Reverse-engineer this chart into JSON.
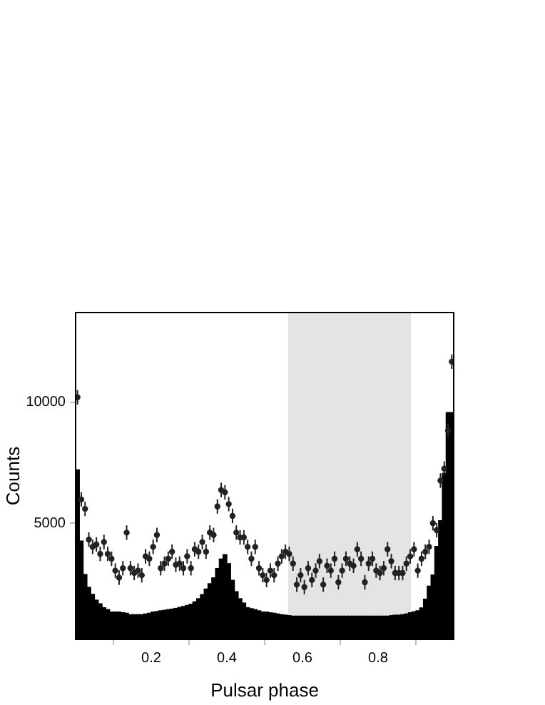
{
  "chart_data": {
    "type": "histogram",
    "xlabel": "Pulsar phase",
    "ylabel": "Counts",
    "xlim": [
      0,
      1
    ],
    "ylim": [
      200,
      13700
    ],
    "xticks": [
      0.2,
      0.4,
      0.6,
      0.8
    ],
    "yticks": [
      5000,
      10000
    ],
    "grid": false,
    "legend": false,
    "marker": "circle",
    "bands": [
      {
        "axis": "x",
        "from": 0.562,
        "to": 0.887,
        "color": "#e4e4e4"
      }
    ],
    "series": [
      {
        "type": "histogram",
        "color": "#000000",
        "bins": [
          0,
          0.01,
          0.02,
          0.03,
          0.04,
          0.05,
          0.06,
          0.07,
          0.08,
          0.09,
          0.1,
          0.11,
          0.12,
          0.13,
          0.14,
          0.15,
          0.16,
          0.17,
          0.18,
          0.19,
          0.2,
          0.21,
          0.22,
          0.23,
          0.24,
          0.25,
          0.26,
          0.27,
          0.28,
          0.29,
          0.3,
          0.31,
          0.32,
          0.33,
          0.34,
          0.35,
          0.36,
          0.37,
          0.38,
          0.39,
          0.4,
          0.41,
          0.42,
          0.43,
          0.44,
          0.45,
          0.46,
          0.47,
          0.48,
          0.49,
          0.5,
          0.51,
          0.52,
          0.53,
          0.54,
          0.55,
          0.56,
          0.57,
          0.58,
          0.59,
          0.6,
          0.61,
          0.62,
          0.63,
          0.64,
          0.65,
          0.66,
          0.67,
          0.68,
          0.69,
          0.7,
          0.71,
          0.72,
          0.73,
          0.74,
          0.75,
          0.76,
          0.77,
          0.78,
          0.79,
          0.8,
          0.81,
          0.82,
          0.83,
          0.84,
          0.85,
          0.86,
          0.87,
          0.88,
          0.89,
          0.9,
          0.91,
          0.92,
          0.93,
          0.94,
          0.95,
          0.96,
          0.97,
          0.98,
          0.99,
          1
        ],
        "values": [
          7200,
          4260,
          2880,
          2350,
          2060,
          1820,
          1670,
          1510,
          1430,
          1330,
          1330,
          1330,
          1300,
          1280,
          1220,
          1220,
          1220,
          1220,
          1250,
          1280,
          1330,
          1350,
          1380,
          1400,
          1430,
          1450,
          1480,
          1520,
          1560,
          1600,
          1650,
          1750,
          1880,
          2050,
          2280,
          2500,
          2740,
          3130,
          3520,
          3700,
          3330,
          2640,
          2170,
          1880,
          1700,
          1510,
          1470,
          1430,
          1380,
          1330,
          1330,
          1300,
          1280,
          1250,
          1220,
          1200,
          1180,
          1160,
          1160,
          1160,
          1160,
          1160,
          1160,
          1160,
          1160,
          1160,
          1160,
          1160,
          1160,
          1160,
          1160,
          1160,
          1160,
          1160,
          1160,
          1160,
          1160,
          1160,
          1160,
          1160,
          1160,
          1160,
          1160,
          1180,
          1200,
          1200,
          1220,
          1250,
          1300,
          1340,
          1380,
          1500,
          1860,
          2400,
          2860,
          4040,
          5100,
          7060,
          9570,
          9570
        ]
      },
      {
        "type": "scatter",
        "color": "#222222",
        "x": [
          0.005,
          0.015,
          0.025,
          0.035,
          0.045,
          0.055,
          0.065,
          0.075,
          0.085,
          0.095,
          0.105,
          0.115,
          0.125,
          0.135,
          0.145,
          0.155,
          0.165,
          0.175,
          0.185,
          0.195,
          0.205,
          0.215,
          0.225,
          0.235,
          0.245,
          0.255,
          0.265,
          0.275,
          0.285,
          0.295,
          0.305,
          0.315,
          0.325,
          0.335,
          0.345,
          0.355,
          0.365,
          0.375,
          0.385,
          0.395,
          0.405,
          0.415,
          0.425,
          0.435,
          0.445,
          0.455,
          0.465,
          0.475,
          0.485,
          0.495,
          0.505,
          0.515,
          0.525,
          0.535,
          0.545,
          0.555,
          0.565,
          0.575,
          0.585,
          0.595,
          0.605,
          0.615,
          0.625,
          0.635,
          0.645,
          0.655,
          0.665,
          0.675,
          0.685,
          0.695,
          0.705,
          0.715,
          0.725,
          0.735,
          0.745,
          0.755,
          0.765,
          0.775,
          0.785,
          0.795,
          0.805,
          0.815,
          0.825,
          0.835,
          0.845,
          0.855,
          0.865,
          0.875,
          0.885,
          0.895,
          0.905,
          0.915,
          0.925,
          0.935,
          0.945,
          0.955,
          0.965,
          0.975,
          0.985,
          0.995
        ],
        "values": [
          10200,
          5980,
          5590,
          4320,
          4020,
          4120,
          3730,
          4220,
          3730,
          3530,
          3040,
          2750,
          3140,
          4610,
          3140,
          2940,
          3040,
          2850,
          3630,
          3530,
          4020,
          4510,
          3140,
          3330,
          3530,
          3820,
          3280,
          3330,
          3140,
          3630,
          3140,
          3920,
          3820,
          4220,
          3820,
          4610,
          4510,
          5690,
          6370,
          6270,
          5790,
          5300,
          4610,
          4410,
          4410,
          4020,
          3530,
          4020,
          3140,
          2850,
          2650,
          3040,
          2850,
          3330,
          3630,
          3820,
          3730,
          3330,
          2460,
          2850,
          2360,
          3140,
          2650,
          3040,
          3430,
          2460,
          3240,
          3040,
          3530,
          2560,
          3040,
          3530,
          3330,
          3240,
          3920,
          3530,
          2560,
          3330,
          3530,
          3040,
          2940,
          3140,
          3920,
          3430,
          2940,
          2940,
          2940,
          3330,
          3630,
          3920,
          3040,
          3530,
          3820,
          4020,
          5000,
          4710,
          6760,
          7250,
          8820,
          11670
        ],
        "errors": [
          300,
          300,
          300,
          300,
          300,
          300,
          300,
          300,
          300,
          300,
          300,
          300,
          300,
          300,
          300,
          300,
          300,
          300,
          300,
          300,
          300,
          300,
          300,
          300,
          300,
          300,
          300,
          300,
          300,
          300,
          300,
          300,
          300,
          300,
          300,
          300,
          300,
          300,
          300,
          300,
          300,
          300,
          300,
          300,
          300,
          300,
          300,
          300,
          300,
          300,
          300,
          300,
          300,
          300,
          300,
          300,
          300,
          300,
          300,
          300,
          300,
          300,
          300,
          300,
          300,
          300,
          300,
          300,
          300,
          300,
          300,
          300,
          300,
          300,
          300,
          300,
          300,
          300,
          300,
          300,
          300,
          300,
          300,
          300,
          300,
          300,
          300,
          300,
          300,
          300,
          300,
          300,
          300,
          300,
          300,
          300,
          300,
          300,
          300,
          300
        ]
      }
    ]
  }
}
